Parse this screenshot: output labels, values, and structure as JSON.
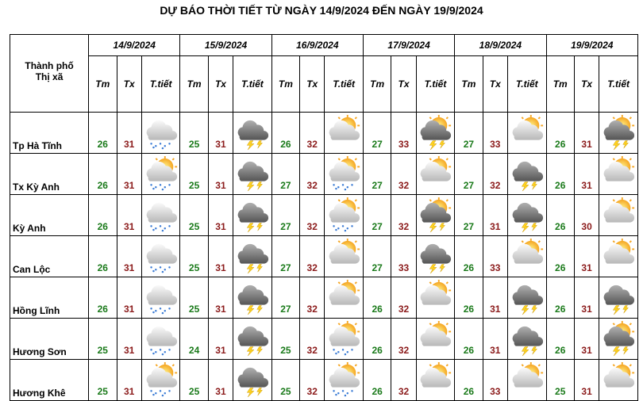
{
  "title": "DỰ BÁO THỜI TIẾT TỪ NGÀY 14/9/2024 ĐẾN NGÀY 19/9/2024",
  "table": {
    "city_label": [
      "Thành phố",
      "Thị xã"
    ],
    "dates": [
      "14/9/2024",
      "15/9/2024",
      "16/9/2024",
      "17/9/2024",
      "18/9/2024",
      "19/9/2024"
    ],
    "columns": [
      "Tm",
      "Tx",
      "T.tiết"
    ],
    "rows": [
      {
        "city": "Tp Hà Tĩnh",
        "days": [
          [
            26,
            31
          ],
          [
            25,
            31
          ],
          [
            26,
            32
          ],
          [
            27,
            33
          ],
          [
            27,
            33
          ],
          [
            26,
            31
          ]
        ]
      },
      {
        "city": "Tx Kỳ Anh",
        "days": [
          [
            26,
            31
          ],
          [
            25,
            31
          ],
          [
            27,
            32
          ],
          [
            27,
            32
          ],
          [
            27,
            32
          ],
          [
            26,
            31
          ]
        ]
      },
      {
        "city": "Kỳ Anh",
        "days": [
          [
            26,
            31
          ],
          [
            25,
            31
          ],
          [
            27,
            32
          ],
          [
            27,
            32
          ],
          [
            27,
            31
          ],
          [
            26,
            30
          ]
        ]
      },
      {
        "city": "Can Lộc",
        "days": [
          [
            26,
            31
          ],
          [
            25,
            31
          ],
          [
            27,
            32
          ],
          [
            27,
            33
          ],
          [
            26,
            33
          ],
          [
            26,
            31
          ]
        ]
      },
      {
        "city": "Hồng Lĩnh",
        "days": [
          [
            26,
            31
          ],
          [
            25,
            31
          ],
          [
            27,
            32
          ],
          [
            26,
            32
          ],
          [
            26,
            31
          ],
          [
            26,
            31
          ]
        ]
      },
      {
        "city": "Hương Sơn",
        "days": [
          [
            25,
            31
          ],
          [
            24,
            31
          ],
          [
            25,
            32
          ],
          [
            26,
            32
          ],
          [
            26,
            31
          ],
          [
            26,
            31
          ]
        ]
      },
      {
        "city": "Hương Khê",
        "days": [
          [
            25,
            31
          ],
          [
            25,
            31
          ],
          [
            25,
            32
          ],
          [
            26,
            32
          ],
          [
            26,
            33
          ],
          [
            25,
            31
          ]
        ]
      }
    ]
  }
}
